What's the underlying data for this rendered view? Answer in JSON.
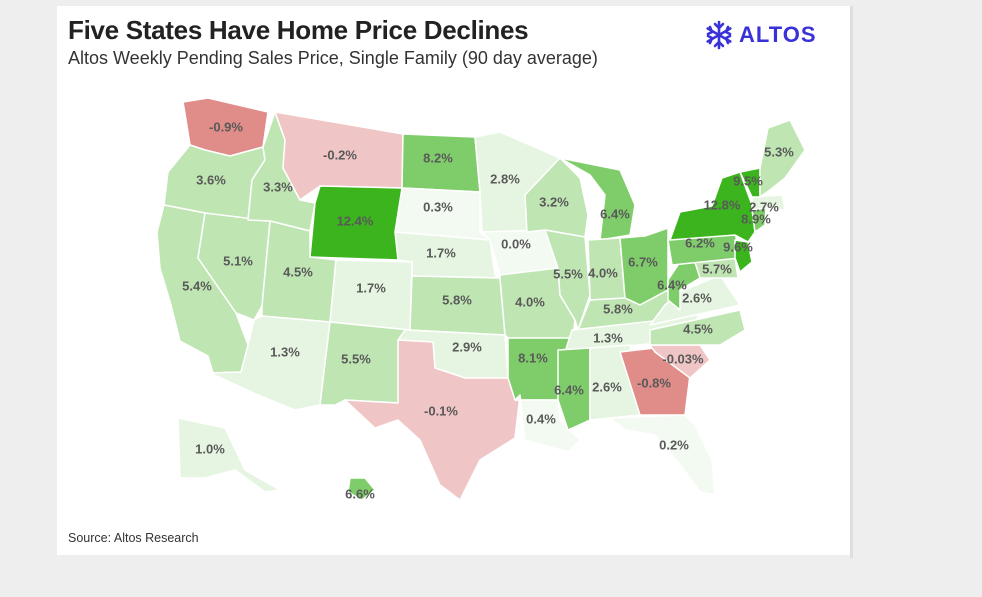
{
  "title": "Five States Have Home Price Declines",
  "subtitle": "Altos Weekly Pending Sales Price, Single Family (90 day average)",
  "source": "Source: Altos Research",
  "logo": {
    "text": "ALTOS",
    "icon": "altos-snowflake-icon",
    "color": "#3a32d9"
  },
  "colors": {
    "strong_green": "#3cb41e",
    "mid_green": "#7fcd6a",
    "light_green": "#bfe5b3",
    "pale_green": "#e6f5e1",
    "lightest_green": "#f3faf1",
    "pale_red": "#f0c5c5",
    "red": "#e08d8a"
  },
  "states": [
    {
      "code": "WA",
      "label": "-0.9%",
      "value": -0.9
    },
    {
      "code": "OR",
      "label": "3.6%",
      "value": 3.6
    },
    {
      "code": "CA",
      "label": "5.4%",
      "value": 5.4
    },
    {
      "code": "NV",
      "label": "5.1%",
      "value": 5.1
    },
    {
      "code": "ID",
      "label": "3.3%",
      "value": 3.3
    },
    {
      "code": "MT",
      "label": "-0.2%",
      "value": -0.2
    },
    {
      "code": "WY",
      "label": "12.4%",
      "value": 12.4
    },
    {
      "code": "UT",
      "label": "4.5%",
      "value": 4.5
    },
    {
      "code": "AZ",
      "label": "1.3%",
      "value": 1.3
    },
    {
      "code": "CO",
      "label": "1.7%",
      "value": 1.7
    },
    {
      "code": "NM",
      "label": "5.5%",
      "value": 5.5
    },
    {
      "code": "ND",
      "label": "8.2%",
      "value": 8.2
    },
    {
      "code": "SD",
      "label": "0.3%",
      "value": 0.3
    },
    {
      "code": "NE",
      "label": "1.7%",
      "value": 1.7
    },
    {
      "code": "KS",
      "label": "5.8%",
      "value": 5.8
    },
    {
      "code": "OK",
      "label": "2.9%",
      "value": 2.9
    },
    {
      "code": "TX",
      "label": "-0.1%",
      "value": -0.1
    },
    {
      "code": "MN",
      "label": "2.8%",
      "value": 2.8
    },
    {
      "code": "IA",
      "label": "0.0%",
      "value": 0.0
    },
    {
      "code": "MO",
      "label": "4.0%",
      "value": 4.0
    },
    {
      "code": "AR",
      "label": "8.1%",
      "value": 8.1
    },
    {
      "code": "LA",
      "label": "0.4%",
      "value": 0.4
    },
    {
      "code": "WI",
      "label": "3.2%",
      "value": 3.2
    },
    {
      "code": "IL",
      "label": "5.5%",
      "value": 5.5
    },
    {
      "code": "MI",
      "label": "6.4%",
      "value": 6.4
    },
    {
      "code": "IN",
      "label": "4.0%",
      "value": 4.0
    },
    {
      "code": "OH",
      "label": "6.7%",
      "value": 6.7
    },
    {
      "code": "KY",
      "label": "5.8%",
      "value": 5.8
    },
    {
      "code": "TN",
      "label": "1.3%",
      "value": 1.3
    },
    {
      "code": "MS",
      "label": "6.4%",
      "value": 6.4
    },
    {
      "code": "AL",
      "label": "2.6%",
      "value": 2.6
    },
    {
      "code": "GA",
      "label": "-0.8%",
      "value": -0.8
    },
    {
      "code": "FL",
      "label": "0.2%",
      "value": 0.2
    },
    {
      "code": "SC",
      "label": "-0.03%",
      "value": -0.03
    },
    {
      "code": "NC",
      "label": "4.5%",
      "value": 4.5
    },
    {
      "code": "VA",
      "label": "2.6%",
      "value": 2.6
    },
    {
      "code": "WV",
      "label": "6.4%",
      "value": 6.4
    },
    {
      "code": "MD",
      "label": "5.7%",
      "value": 5.7
    },
    {
      "code": "PA",
      "label": "6.2%",
      "value": 6.2
    },
    {
      "code": "NJ",
      "label": "9.6%",
      "value": 9.6
    },
    {
      "code": "NY",
      "label": "12.8%",
      "value": 12.8
    },
    {
      "code": "CT",
      "label": "8.9%",
      "value": 8.9
    },
    {
      "code": "MA",
      "label": "2.7%",
      "value": 2.7
    },
    {
      "code": "VT",
      "label": "9.5%",
      "value": 9.5
    },
    {
      "code": "ME",
      "label": "5.3%",
      "value": 5.3
    },
    {
      "code": "AK",
      "label": "1.0%",
      "value": 1.0
    },
    {
      "code": "HI",
      "label": "6.6%",
      "value": 6.6
    }
  ]
}
